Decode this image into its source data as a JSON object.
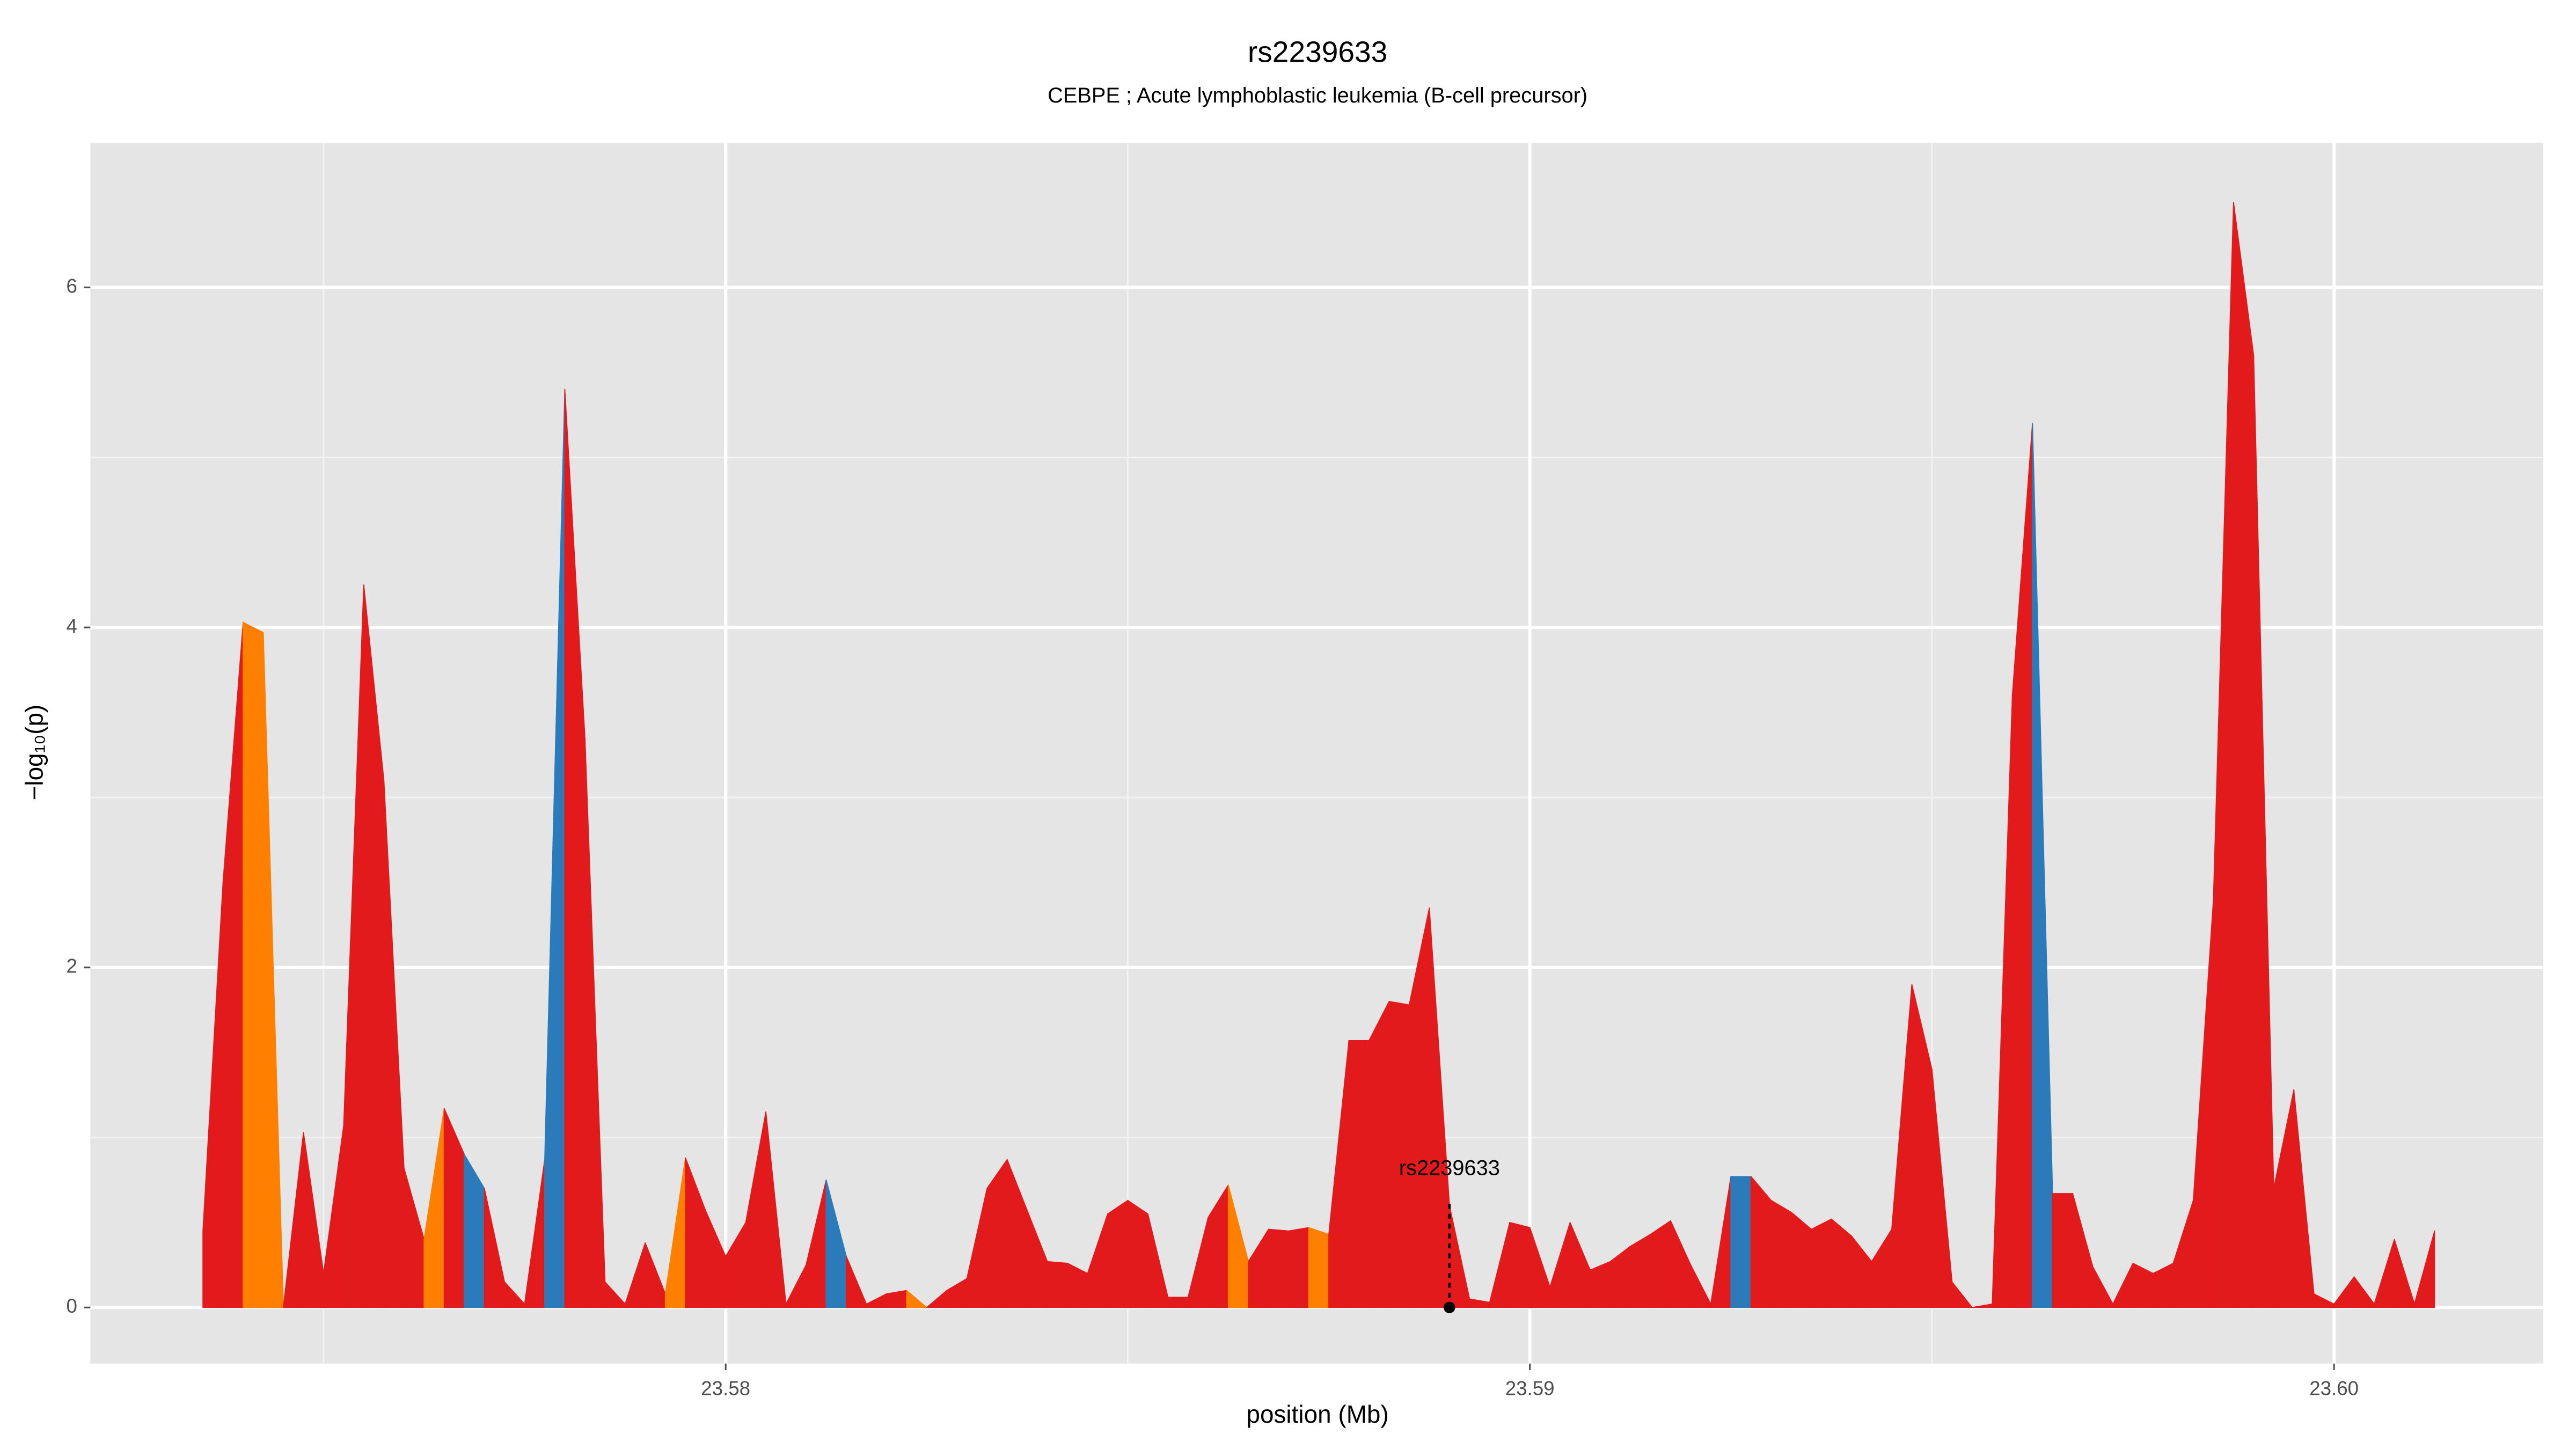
{
  "chart_data": {
    "type": "area",
    "title": "rs2239633",
    "subtitle": "CEBPE  ; Acute lymphoblastic leukemia (B-cell precursor)",
    "xlabel": "position (Mb)",
    "ylabel": "−log₁₀(p)",
    "x": [
      23.5735,
      23.57375,
      23.574,
      23.57425,
      23.5745,
      23.57475,
      23.575,
      23.57525,
      23.5755,
      23.57575,
      23.576,
      23.57625,
      23.5765,
      23.57675,
      23.577,
      23.57725,
      23.5775,
      23.57775,
      23.578,
      23.57825,
      23.5785,
      23.57875,
      23.579,
      23.57925,
      23.5795,
      23.57975,
      23.58,
      23.58025,
      23.5805,
      23.58075,
      23.581,
      23.58125,
      23.5815,
      23.58175,
      23.582,
      23.58225,
      23.5825,
      23.58275,
      23.583,
      23.58325,
      23.5835,
      23.58375,
      23.584,
      23.58425,
      23.5845,
      23.58475,
      23.585,
      23.58525,
      23.5855,
      23.58575,
      23.586,
      23.58625,
      23.5865,
      23.58675,
      23.587,
      23.58725,
      23.5875,
      23.58775,
      23.588,
      23.58825,
      23.5885,
      23.58875,
      23.589,
      23.58925,
      23.5895,
      23.58975,
      23.59,
      23.59025,
      23.5905,
      23.59075,
      23.591,
      23.59125,
      23.5915,
      23.59175,
      23.592,
      23.59225,
      23.5925,
      23.59275,
      23.593,
      23.59325,
      23.5935,
      23.59375,
      23.594,
      23.59425,
      23.5945,
      23.59475,
      23.595,
      23.59525,
      23.5955,
      23.59575,
      23.596,
      23.59625,
      23.5965,
      23.59675,
      23.597,
      23.59725,
      23.5975,
      23.59775,
      23.598,
      23.59825,
      23.5985,
      23.59875,
      23.599,
      23.59925,
      23.5995,
      23.59975,
      23.6,
      23.60025,
      23.6005,
      23.60075,
      23.601,
      23.60125
    ],
    "values": [
      0.45,
      2.5,
      4.03,
      3.97,
      0,
      1.03,
      0.2,
      1.07,
      4.25,
      3.1,
      0.82,
      0.4,
      1.17,
      0.9,
      0.7,
      0.15,
      0.02,
      0.87,
      5.4,
      3.35,
      0.15,
      0.02,
      0.38,
      0.08,
      0.88,
      0.57,
      0.3,
      0.5,
      1.15,
      0.02,
      0.25,
      0.75,
      0.3,
      0.02,
      0.08,
      0.1,
      0,
      0.1,
      0.17,
      0.7,
      0.87,
      0.57,
      0.27,
      0.26,
      0.2,
      0.55,
      0.63,
      0.55,
      0.06,
      0.06,
      0.53,
      0.72,
      0.27,
      0.46,
      0.45,
      0.47,
      0.43,
      1.57,
      1.57,
      1.8,
      1.78,
      2.35,
      0.6,
      0.05,
      0.03,
      0.5,
      0.47,
      0.12,
      0.5,
      0.22,
      0.27,
      0.36,
      0.43,
      0.51,
      0.25,
      0.02,
      0.77,
      0.77,
      0.63,
      0.56,
      0.46,
      0.52,
      0.42,
      0.27,
      0.46,
      1.9,
      1.4,
      0.15,
      0,
      0.02,
      3.6,
      5.2,
      0.67,
      0.67,
      0.24,
      0.02,
      0.26,
      0.2,
      0.26,
      0.63,
      2.4,
      6.5,
      5.6,
      0.7,
      1.28,
      0.08,
      0.02,
      0.18,
      0.02,
      0.4,
      0.02,
      0.45
    ],
    "segment_colors": [
      "#e31a1c",
      "#e31a1c",
      "#ff7f00",
      "#ff7f00",
      "#e31a1c",
      "#e31a1c",
      "#e31a1c",
      "#e31a1c",
      "#e31a1c",
      "#e31a1c",
      "#e31a1c",
      "#ff7f00",
      "#e31a1c",
      "#2b7bba",
      "#e31a1c",
      "#e31a1c",
      "#e31a1c",
      "#2b7bba",
      "#e31a1c",
      "#e31a1c",
      "#e31a1c",
      "#e31a1c",
      "#e31a1c",
      "#ff7f00",
      "#e31a1c",
      "#e31a1c",
      "#e31a1c",
      "#e31a1c",
      "#e31a1c",
      "#e31a1c",
      "#e31a1c",
      "#2b7bba",
      "#e31a1c",
      "#e31a1c",
      "#e31a1c",
      "#ff7f00",
      "#e31a1c",
      "#e31a1c",
      "#e31a1c",
      "#e31a1c",
      "#e31a1c",
      "#e31a1c",
      "#e31a1c",
      "#e31a1c",
      "#e31a1c",
      "#e31a1c",
      "#e31a1c",
      "#e31a1c",
      "#e31a1c",
      "#e31a1c",
      "#e31a1c",
      "#ff7f00",
      "#e31a1c",
      "#e31a1c",
      "#e31a1c",
      "#ff7f00",
      "#e31a1c",
      "#e31a1c",
      "#e31a1c",
      "#e31a1c",
      "#e31a1c",
      "#e31a1c",
      "#e31a1c",
      "#e31a1c",
      "#e31a1c",
      "#e31a1c",
      "#e31a1c",
      "#e31a1c",
      "#e31a1c",
      "#e31a1c",
      "#e31a1c",
      "#e31a1c",
      "#e31a1c",
      "#e31a1c",
      "#e31a1c",
      "#e31a1c",
      "#2b7bba",
      "#e31a1c",
      "#e31a1c",
      "#e31a1c",
      "#e31a1c",
      "#e31a1c",
      "#e31a1c",
      "#e31a1c",
      "#e31a1c",
      "#e31a1c",
      "#e31a1c",
      "#e31a1c",
      "#e31a1c",
      "#e31a1c",
      "#e31a1c",
      "#2b7bba",
      "#e31a1c",
      "#e31a1c",
      "#e31a1c",
      "#e31a1c",
      "#e31a1c",
      "#e31a1c",
      "#e31a1c",
      "#e31a1c",
      "#e31a1c",
      "#e31a1c",
      "#e31a1c",
      "#e31a1c",
      "#e31a1c",
      "#e31a1c",
      "#e31a1c",
      "#e31a1c",
      "#e31a1c",
      "#e31a1c",
      "#e31a1c"
    ],
    "annotation": {
      "text": "rs2239633",
      "x": 23.589,
      "y": 0
    },
    "xlim": [
      23.5721,
      23.6026
    ],
    "ylim": [
      -0.33,
      6.85
    ],
    "xticks": [
      23.58,
      23.59,
      {
        "value": 23.6,
        "label": "23.60"
      }
    ],
    "yticks": [
      0,
      2,
      4,
      6
    ],
    "x_minor_grid": [
      23.575,
      23.585,
      23.595
    ],
    "y_minor_grid": [
      1,
      3,
      5
    ],
    "grid": true
  }
}
